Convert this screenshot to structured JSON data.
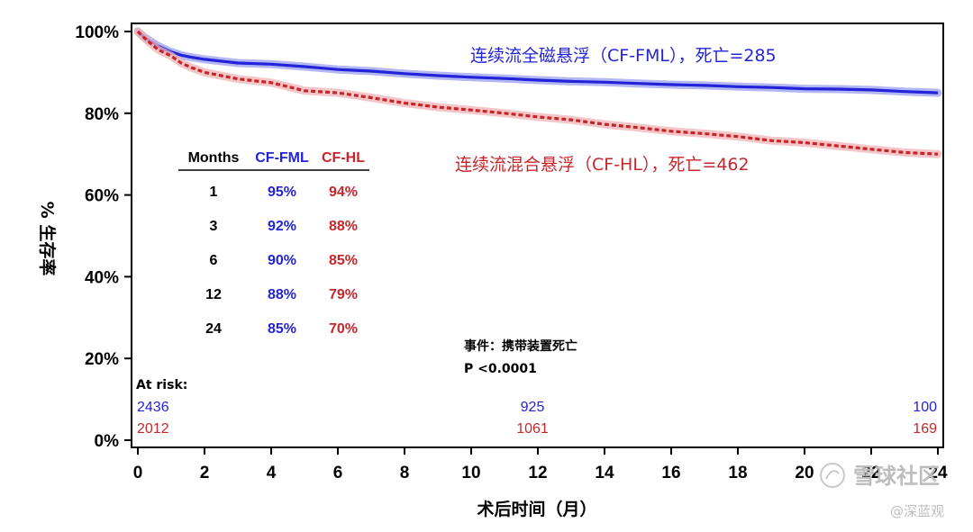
{
  "chart_data": {
    "type": "line",
    "xlabel": "术后时间（月）",
    "ylabel": "% 生存率",
    "xlim": [
      0,
      24
    ],
    "ylim": [
      0,
      100
    ],
    "x_ticks": [
      0,
      2,
      4,
      6,
      8,
      10,
      12,
      14,
      16,
      18,
      20,
      22,
      24
    ],
    "y_ticks": [
      "0%",
      "20%",
      "40%",
      "60%",
      "80%",
      "100%"
    ],
    "y_tick_values": [
      0,
      20,
      40,
      60,
      80,
      100
    ],
    "grid": false,
    "series": [
      {
        "name": "连续流全磁悬浮（CF-FML），死亡=285",
        "color": "#2323d8",
        "style": "solid",
        "x": [
          0,
          0.2,
          0.4,
          0.6,
          0.8,
          1,
          1.3,
          1.6,
          2,
          3,
          4,
          5,
          6,
          7,
          8,
          9,
          10,
          11,
          12,
          13,
          14,
          15,
          16,
          17,
          18,
          19,
          20,
          21,
          22,
          23,
          24
        ],
        "y": [
          100,
          98.6,
          97.5,
          96.5,
          95.7,
          95,
          94.2,
          93.7,
          93.2,
          92.3,
          92,
          91.4,
          90.7,
          90.3,
          89.7,
          89.2,
          88.8,
          88.5,
          88.1,
          87.8,
          87.6,
          87.3,
          87,
          86.8,
          86.5,
          86.3,
          86,
          85.9,
          85.7,
          85.3,
          85
        ]
      },
      {
        "name": "连续流混合悬浮（CF-HL），死亡=462",
        "color": "#c8252b",
        "style": "dashed",
        "x": [
          0,
          0.2,
          0.4,
          0.6,
          0.8,
          1,
          1.3,
          1.6,
          2,
          2.5,
          3,
          4,
          5,
          6,
          7,
          8,
          9,
          10,
          11,
          12,
          13,
          14,
          15,
          16,
          17,
          18,
          19,
          20,
          21,
          22,
          23,
          24
        ],
        "y": [
          100,
          98.4,
          97,
          95.6,
          94.8,
          94,
          92.3,
          91.2,
          90,
          89.2,
          88.4,
          87.5,
          85.5,
          85,
          83.8,
          82.5,
          81.5,
          80.8,
          80,
          79.1,
          78.4,
          77.3,
          76.5,
          75.6,
          75,
          74.3,
          73.3,
          72.8,
          72,
          71.2,
          70.4,
          70
        ]
      }
    ],
    "annotations": {
      "blue_label": "连续流全磁悬浮（CF-FML），死亡=285",
      "red_label": "连续流混合悬浮（CF-HL），死亡=462",
      "event": "事件：携带装置死亡",
      "pvalue": "P <0.0001"
    },
    "table": {
      "headers": [
        "Months",
        "CF-FML",
        "CF-HL"
      ],
      "rows": [
        [
          "1",
          "95%",
          "94%"
        ],
        [
          "3",
          "92%",
          "88%"
        ],
        [
          "6",
          "90%",
          "85%"
        ],
        [
          "12",
          "88%",
          "79%"
        ],
        [
          "24",
          "85%",
          "70%"
        ]
      ]
    },
    "at_risk": {
      "label": "At risk:",
      "times": [
        0,
        12,
        24
      ],
      "cf_fml": [
        "2436",
        "925",
        "100"
      ],
      "cf_hl": [
        "2012",
        "1061",
        "169"
      ]
    }
  },
  "watermark": {
    "text1": "雪球社区",
    "text2": "@深蓝观"
  }
}
